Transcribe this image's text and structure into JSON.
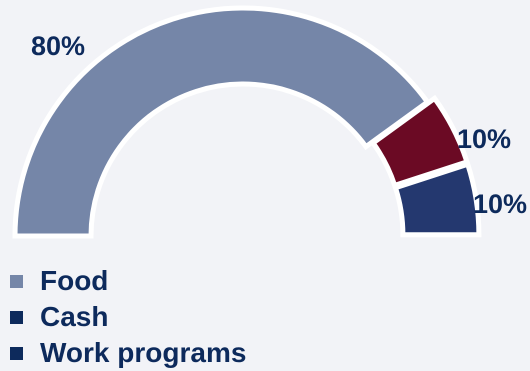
{
  "chart_data": {
    "type": "pie",
    "variant": "half-donut",
    "categories": [
      "Food",
      "Cash",
      "Work programs"
    ],
    "values": [
      80,
      10,
      10
    ],
    "value_labels": [
      "80%",
      "10%",
      "10%"
    ],
    "legend": {
      "entries": [
        "Food",
        "Cash",
        "Work programs"
      ],
      "placement": "bottom-left"
    },
    "colors": {
      "Food": "#7586a8",
      "Cash": "#6b0a24",
      "Work programs": "#24386f"
    },
    "legend_colors": {
      "Food": "#7586a8",
      "Cash": "#0d2a5c",
      "Work programs": "#0d2a5c"
    },
    "separator_color": "#ffffff",
    "label_color": "#0d2a5c",
    "title": "",
    "xlabel": "",
    "ylabel": ""
  }
}
